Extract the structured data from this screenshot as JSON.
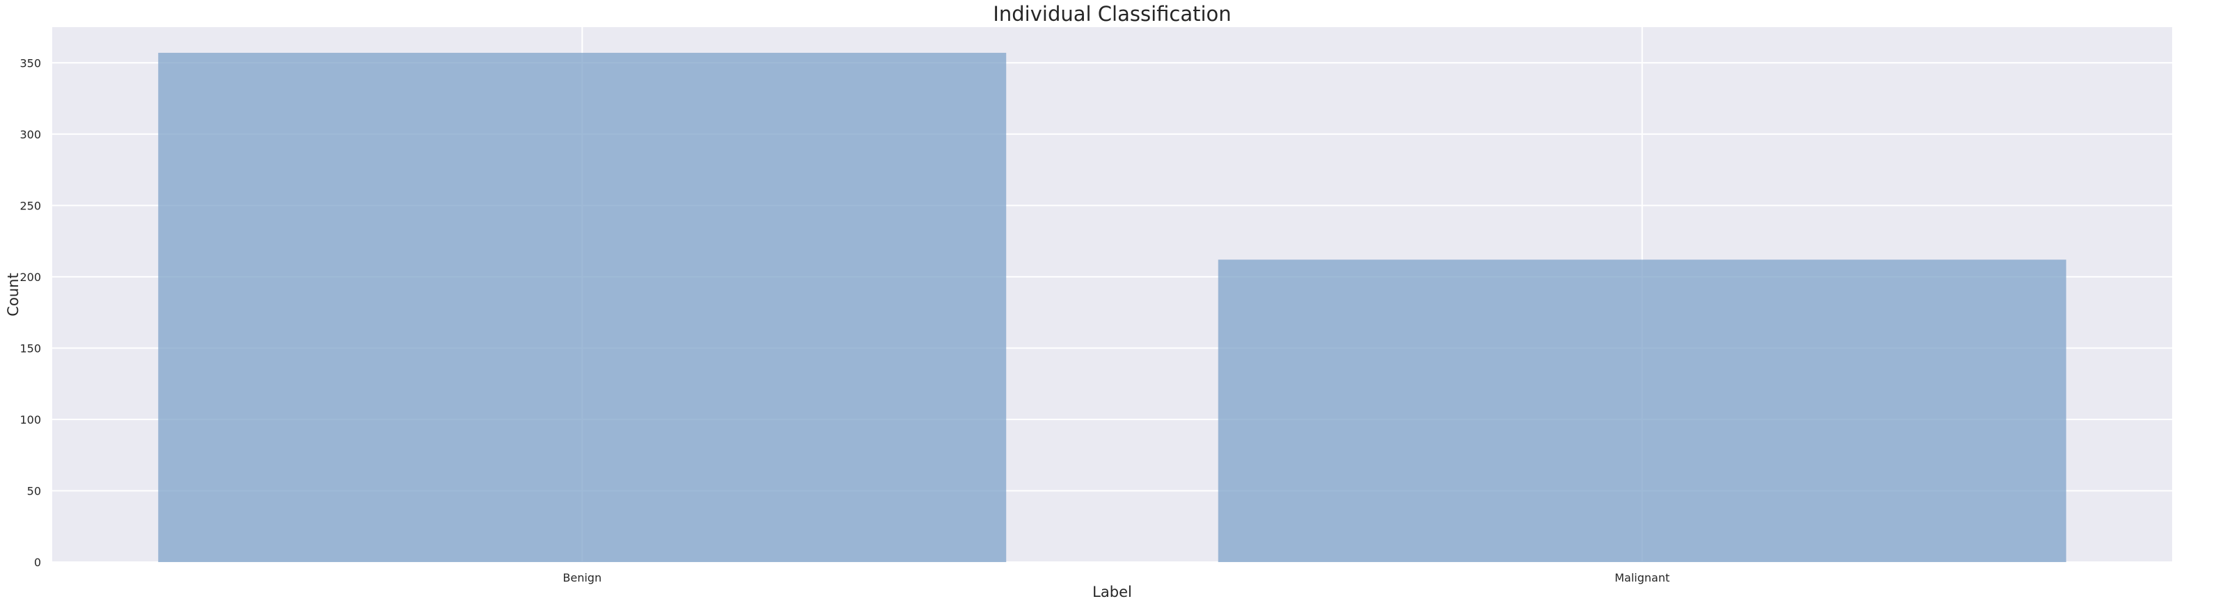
{
  "chart_data": {
    "type": "bar",
    "title": "Individual Classification",
    "xlabel": "Label",
    "ylabel": "Count",
    "categories": [
      "Benign",
      "Malignant"
    ],
    "values": [
      357,
      212
    ],
    "ylim": [
      0,
      375
    ],
    "yticks": [
      0,
      50,
      100,
      150,
      200,
      250,
      300,
      350
    ],
    "grid": true,
    "bar_color": "#7fa3ca",
    "bar_opacity": 0.75,
    "plot_background": "#eaeaf2",
    "grid_color": "#ffffff"
  }
}
